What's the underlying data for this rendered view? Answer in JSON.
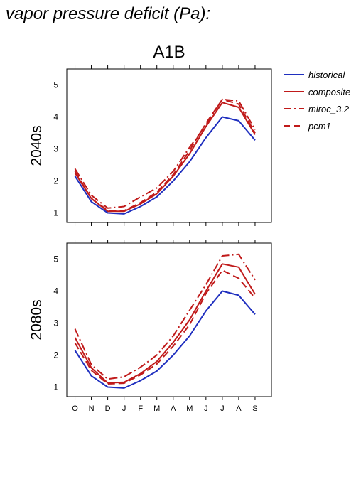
{
  "page": {
    "title": "vapor pressure deficit (Pa):"
  },
  "chart_data": {
    "type": "line",
    "title": "A1B",
    "categories": [
      "O",
      "N",
      "D",
      "J",
      "F",
      "M",
      "A",
      "M",
      "J",
      "J",
      "A",
      "S"
    ],
    "ylim": [
      0.7,
      5.5
    ],
    "yticks": [
      1,
      2,
      3,
      4,
      5
    ],
    "grid": false,
    "legend": {
      "placement": "right",
      "entries": [
        {
          "name": "historical",
          "color": "#1f2fbf",
          "dash": "solid"
        },
        {
          "name": "composite",
          "color": "#c01a1a",
          "dash": "solid"
        },
        {
          "name": "miroc_3.2",
          "color": "#c01a1a",
          "dash": "dashdot"
        },
        {
          "name": "pcm1",
          "color": "#c01a1a",
          "dash": "dash"
        }
      ]
    },
    "panels": [
      {
        "ylabel": "2040s",
        "series": [
          {
            "name": "historical",
            "values": [
              2.15,
              1.35,
              1.0,
              0.97,
              1.2,
              1.5,
              2.0,
              2.6,
              3.35,
              4.0,
              3.88,
              3.27
            ]
          },
          {
            "name": "composite",
            "values": [
              2.25,
              1.45,
              1.05,
              1.05,
              1.28,
              1.6,
              2.15,
              2.85,
              3.7,
              4.45,
              4.3,
              3.45
            ]
          },
          {
            "name": "miroc_3.2",
            "values": [
              2.38,
              1.55,
              1.15,
              1.2,
              1.5,
              1.78,
              2.3,
              3.05,
              3.75,
              4.55,
              4.5,
              3.6
            ]
          },
          {
            "name": "pcm1",
            "values": [
              2.3,
              1.45,
              1.08,
              1.07,
              1.32,
              1.65,
              2.2,
              2.95,
              3.8,
              4.55,
              4.4,
              3.5
            ]
          }
        ]
      },
      {
        "ylabel": "2080s",
        "series": [
          {
            "name": "historical",
            "values": [
              2.15,
              1.35,
              1.0,
              0.97,
              1.2,
              1.5,
              2.0,
              2.6,
              3.38,
              4.0,
              3.87,
              3.27
            ]
          },
          {
            "name": "composite",
            "values": [
              2.55,
              1.6,
              1.13,
              1.15,
              1.42,
              1.8,
              2.4,
              3.1,
              4.0,
              4.85,
              4.75,
              3.9
            ]
          },
          {
            "name": "miroc_3.2",
            "values": [
              2.82,
              1.7,
              1.25,
              1.32,
              1.62,
              2.0,
              2.6,
              3.4,
              4.2,
              5.1,
              5.15,
              4.35
            ]
          },
          {
            "name": "pcm1",
            "values": [
              2.38,
              1.52,
              1.1,
              1.12,
              1.38,
              1.72,
              2.28,
              2.95,
              3.92,
              4.65,
              4.4,
              3.78
            ]
          }
        ]
      }
    ]
  }
}
